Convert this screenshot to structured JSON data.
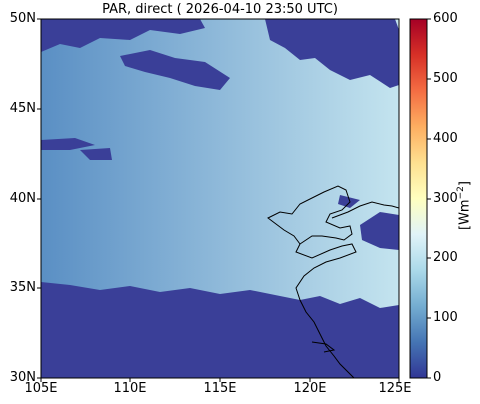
{
  "title": "PAR, direct ( 2026-04-10 23:50 UTC)",
  "lat_ticks": [
    "50N",
    "45N",
    "40N",
    "35N",
    "30N"
  ],
  "lon_ticks": [
    "105E",
    "110E",
    "115E",
    "120E",
    "125E"
  ],
  "colorbar": {
    "ticks": [
      "600",
      "500",
      "400",
      "300",
      "200",
      "100",
      "0"
    ],
    "label_main": "[Wm",
    "label_sup": "−2",
    "label_end": "]",
    "range": [
      0,
      600
    ],
    "colormap": "RdYlBu_r",
    "colors": [
      "#313695",
      "#4575b4",
      "#74add1",
      "#abd9e9",
      "#e0f3f8",
      "#ffffbf",
      "#fee090",
      "#fdae61",
      "#f46d43",
      "#d73027",
      "#a50026"
    ]
  },
  "map": {
    "extent_lon": [
      105,
      125
    ],
    "extent_lat": [
      30,
      50
    ],
    "cloud_color": "#3a3f98",
    "clear_sky_west": "#5a8fc4",
    "clear_sky_east": "#c4e4ef",
    "coastline_color": "#000000"
  }
}
